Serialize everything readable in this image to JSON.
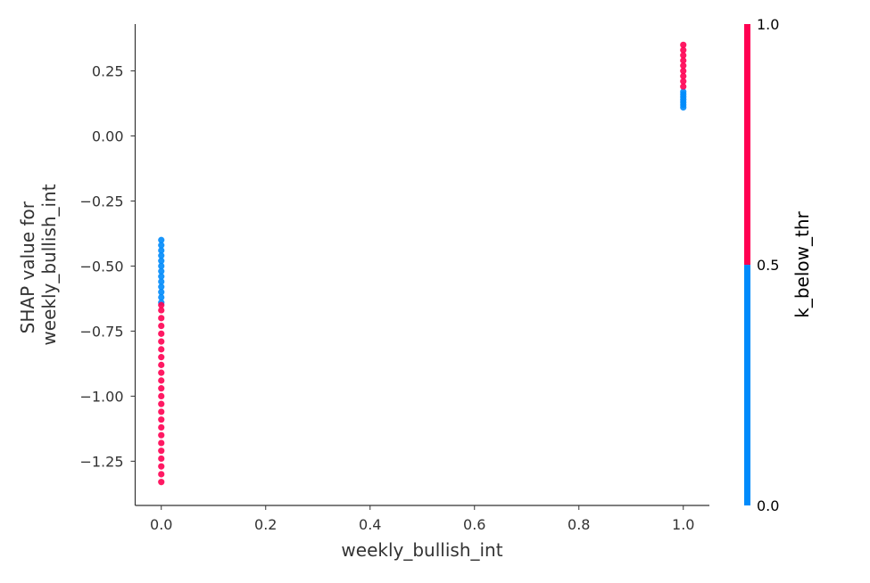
{
  "chart_data": {
    "type": "scatter",
    "xlabel": "weekly_bullish_int",
    "ylabel_lines": [
      "SHAP value for",
      "weekly_bullish_int"
    ],
    "xlim": [
      -0.05,
      1.05
    ],
    "ylim": [
      -1.42,
      0.43
    ],
    "x_ticks": [
      0.0,
      0.2,
      0.4,
      0.6,
      0.8,
      1.0
    ],
    "x_tick_labels": [
      "0.0",
      "0.2",
      "0.4",
      "0.6",
      "0.8",
      "1.0"
    ],
    "y_ticks": [
      0.25,
      0.0,
      -0.25,
      -0.5,
      -0.75,
      -1.0,
      -1.25
    ],
    "y_tick_labels": [
      "0.25",
      "0.00",
      "−0.25",
      "−0.50",
      "−0.75",
      "−1.00",
      "−1.25"
    ],
    "grid": false,
    "colors": {
      "low": "#008bfb",
      "high": "#ff0052"
    },
    "series": [
      {
        "color_value": 0,
        "points": [
          [
            0.0,
            -0.4
          ],
          [
            0.0,
            -0.42
          ],
          [
            0.0,
            -0.44
          ],
          [
            0.0,
            -0.46
          ],
          [
            0.0,
            -0.48
          ],
          [
            0.0,
            -0.5
          ],
          [
            0.0,
            -0.52
          ],
          [
            0.0,
            -0.54
          ],
          [
            0.0,
            -0.56
          ],
          [
            0.0,
            -0.58
          ],
          [
            0.0,
            -0.6
          ],
          [
            0.0,
            -0.62
          ],
          [
            0.0,
            -0.64
          ],
          [
            1.0,
            0.11
          ],
          [
            1.0,
            0.12
          ],
          [
            1.0,
            0.13
          ],
          [
            1.0,
            0.14
          ],
          [
            1.0,
            0.15
          ],
          [
            1.0,
            0.16
          ],
          [
            1.0,
            0.17
          ]
        ]
      },
      {
        "color_value": 1,
        "points": [
          [
            0.0,
            -0.65
          ],
          [
            0.0,
            -0.67
          ],
          [
            0.0,
            -0.7
          ],
          [
            0.0,
            -0.73
          ],
          [
            0.0,
            -0.76
          ],
          [
            0.0,
            -0.79
          ],
          [
            0.0,
            -0.82
          ],
          [
            0.0,
            -0.85
          ],
          [
            0.0,
            -0.88
          ],
          [
            0.0,
            -0.91
          ],
          [
            0.0,
            -0.94
          ],
          [
            0.0,
            -0.97
          ],
          [
            0.0,
            -1.0
          ],
          [
            0.0,
            -1.03
          ],
          [
            0.0,
            -1.06
          ],
          [
            0.0,
            -1.09
          ],
          [
            0.0,
            -1.12
          ],
          [
            0.0,
            -1.15
          ],
          [
            0.0,
            -1.18
          ],
          [
            0.0,
            -1.21
          ],
          [
            0.0,
            -1.24
          ],
          [
            0.0,
            -1.27
          ],
          [
            0.0,
            -1.3
          ],
          [
            0.0,
            -1.33
          ],
          [
            1.0,
            0.19
          ],
          [
            1.0,
            0.21
          ],
          [
            1.0,
            0.23
          ],
          [
            1.0,
            0.25
          ],
          [
            1.0,
            0.27
          ],
          [
            1.0,
            0.29
          ],
          [
            1.0,
            0.31
          ],
          [
            1.0,
            0.33
          ],
          [
            1.0,
            0.35
          ]
        ]
      }
    ],
    "colorbar": {
      "label": "k_below_thr",
      "ticks": [
        0.0,
        0.5,
        1.0
      ],
      "tick_labels": [
        "0.0",
        "0.5",
        "1.0"
      ],
      "range": [
        0.0,
        1.0
      ],
      "split_value": 0.5
    }
  }
}
